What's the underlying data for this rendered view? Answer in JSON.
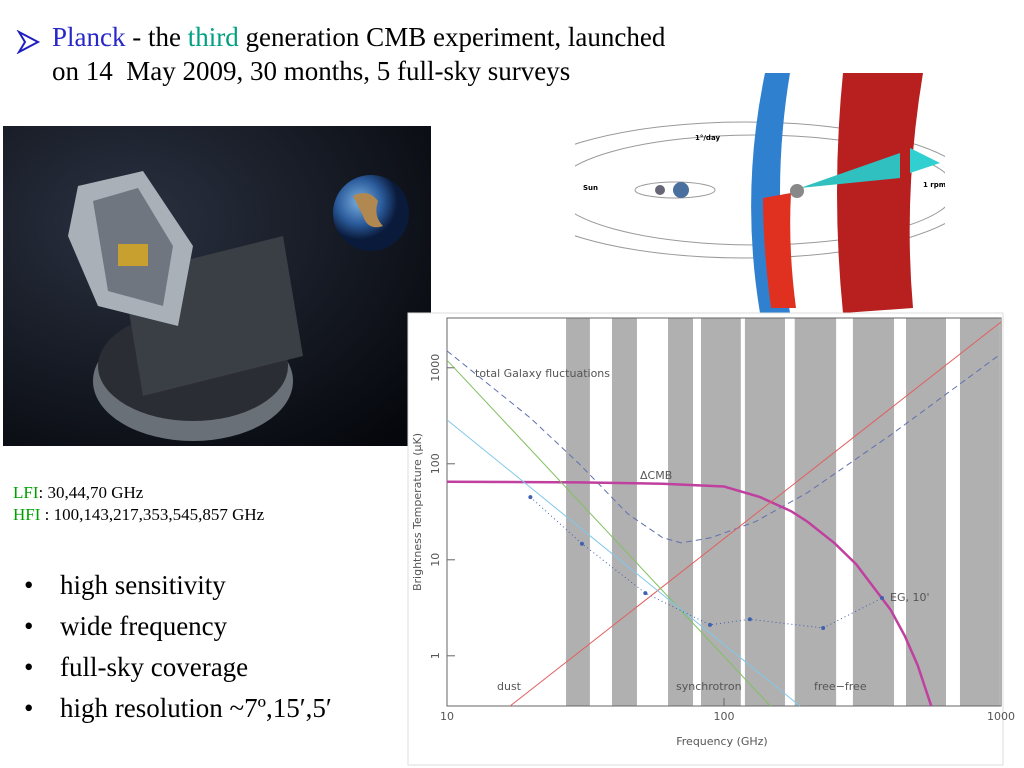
{
  "header": {
    "parts": [
      "Planck",
      " - the ",
      "third",
      " generation CMB experiment, launched"
    ],
    "line2": "on 14  May 2009, 30 months, 5 full-sky surveys"
  },
  "orbit": {
    "rate": "1°/day",
    "sun": "Sun",
    "spin": "1 rpm"
  },
  "instruments": {
    "lfi": {
      "name": "LFI",
      "text": ": 30,44,70 GHz"
    },
    "hfi": {
      "name": "HFI",
      "text": " : 100,143,217,353,545,857 GHz"
    }
  },
  "bullets": [
    "high sensitivity",
    "wide frequency",
    "full-sky coverage",
    "high resolution ~7º,15′,5′"
  ],
  "chart_data": {
    "type": "line",
    "xlabel": "Frequency (GHz)",
    "ylabel": "Brightness Temperature (μK)",
    "log_x": true,
    "log_y": true,
    "xlim": [
      10,
      1000
    ],
    "ylim": [
      0.3,
      3300
    ],
    "xticks": [
      10,
      100,
      1000
    ],
    "yticks": [
      1,
      10,
      100,
      1000
    ],
    "bands": [
      [
        26.9,
        32.8
      ],
      [
        39.4,
        48.5
      ],
      [
        62.8,
        77.3
      ],
      [
        82.6,
        115
      ],
      [
        119,
        166
      ],
      [
        180,
        254
      ],
      [
        292,
        411
      ],
      [
        454,
        633
      ],
      [
        711,
        991
      ]
    ],
    "band_color": "#b0b0b0",
    "series": [
      {
        "name": "total Galaxy fluctuations",
        "color": "#6070b0",
        "dash": true,
        "x": [
          10,
          20,
          30,
          45,
          60,
          70,
          90,
          130,
          200,
          400,
          1000
        ],
        "values": [
          1500,
          300,
          100,
          30,
          17,
          15,
          17,
          25,
          50,
          200,
          1400
        ]
      },
      {
        "name": "ΔCMB",
        "color": "#c040a0",
        "width": 2.5,
        "x": [
          10,
          30,
          60,
          100,
          135,
          175,
          200,
          250,
          300,
          350,
          400,
          450,
          500,
          560
        ],
        "values": [
          65,
          64,
          62,
          58,
          45,
          32,
          25,
          15,
          9,
          5,
          3,
          1.6,
          0.8,
          0.3
        ]
      },
      {
        "name": "dust",
        "color": "#e06060",
        "x": [
          16.9,
          1000
        ],
        "values": [
          0.3,
          3000
        ]
      },
      {
        "name": "synchrotron",
        "color": "#80c060",
        "x": [
          10,
          147
        ],
        "values": [
          1200,
          0.3
        ]
      },
      {
        "name": "free−free",
        "color": "#80c8e8",
        "x": [
          10,
          188
        ],
        "values": [
          287,
          0.3
        ]
      },
      {
        "name": "EG, 10'",
        "color": "#4060b0",
        "dotted": true,
        "markers": true,
        "x": [
          20,
          30.7,
          52,
          89,
          124,
          228,
          372
        ],
        "values": [
          45,
          14.7,
          4.5,
          2.1,
          2.4,
          1.95,
          4.0
        ]
      }
    ]
  }
}
